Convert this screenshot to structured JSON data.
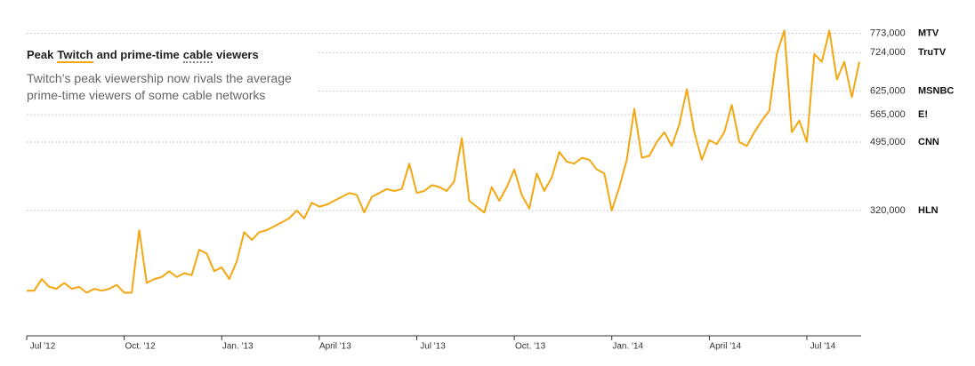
{
  "chart_data": {
    "type": "line",
    "title": [
      "Peak",
      "Twitch",
      "and prime-time",
      "cable",
      "viewers"
    ],
    "subtitle": "Twitch’s peak viewership now rivals the average prime-time viewers of some cable networks",
    "color": "#f3a712",
    "categories": [
      "Jul '12",
      null,
      null,
      null,
      null,
      null,
      null,
      null,
      null,
      null,
      null,
      null,
      null,
      "Oct. '12",
      null,
      null,
      null,
      null,
      null,
      null,
      null,
      null,
      null,
      null,
      null,
      null,
      "Jan. '13",
      null,
      null,
      null,
      null,
      null,
      null,
      null,
      null,
      null,
      null,
      null,
      null,
      "April '13",
      null,
      null,
      null,
      null,
      null,
      null,
      null,
      null,
      null,
      null,
      null,
      null,
      "Jul '13",
      null,
      null,
      null,
      null,
      null,
      null,
      null,
      null,
      null,
      null,
      null,
      null,
      "Oct. '13",
      null,
      null,
      null,
      null,
      null,
      null,
      null,
      null,
      null,
      null,
      null,
      null,
      "Jan. '14",
      null,
      null,
      null,
      null,
      null,
      null,
      null,
      null,
      null,
      null,
      null,
      null,
      "April '14",
      null,
      null,
      null,
      null,
      null,
      null,
      null,
      null,
      null,
      null,
      null,
      null,
      "Jul '14",
      null,
      null,
      null,
      null,
      null,
      null,
      null
    ],
    "values": [
      115000,
      115000,
      145000,
      125000,
      120000,
      135000,
      120000,
      125000,
      110000,
      120000,
      115000,
      120000,
      130000,
      110000,
      110000,
      270000,
      135000,
      145000,
      150000,
      165000,
      150000,
      160000,
      155000,
      220000,
      210000,
      165000,
      175000,
      145000,
      190000,
      265000,
      245000,
      265000,
      270000,
      280000,
      290000,
      300000,
      320000,
      300000,
      340000,
      330000,
      335000,
      345000,
      355000,
      365000,
      360000,
      315000,
      355000,
      365000,
      375000,
      370000,
      375000,
      440000,
      365000,
      370000,
      385000,
      380000,
      370000,
      395000,
      505000,
      345000,
      330000,
      315000,
      380000,
      345000,
      380000,
      425000,
      360000,
      325000,
      415000,
      370000,
      405000,
      470000,
      445000,
      440000,
      455000,
      450000,
      425000,
      415000,
      320000,
      380000,
      450000,
      580000,
      455000,
      460000,
      495000,
      520000,
      485000,
      540000,
      630000,
      520000,
      450000,
      500000,
      490000,
      520000,
      590000,
      495000,
      485000,
      520000,
      550000,
      575000,
      720000,
      780000,
      520000,
      550000,
      495000,
      720000,
      700000,
      780000,
      655000,
      700000,
      610000,
      700000
    ],
    "ylim": [
      0,
      790000
    ],
    "yticks": [
      {
        "value": 773000,
        "label": "773,000"
      },
      {
        "value": 724000,
        "label": "724,000"
      },
      {
        "value": 625000,
        "label": "625,000"
      },
      {
        "value": 565000,
        "label": "565,000"
      },
      {
        "value": 495000,
        "label": "495,000"
      },
      {
        "value": 320000,
        "label": "320,000"
      }
    ],
    "ytick_names": [
      "MTV",
      "TruTV",
      "MSNBC",
      "E!",
      "CNN",
      "HLN"
    ],
    "grid": true
  }
}
